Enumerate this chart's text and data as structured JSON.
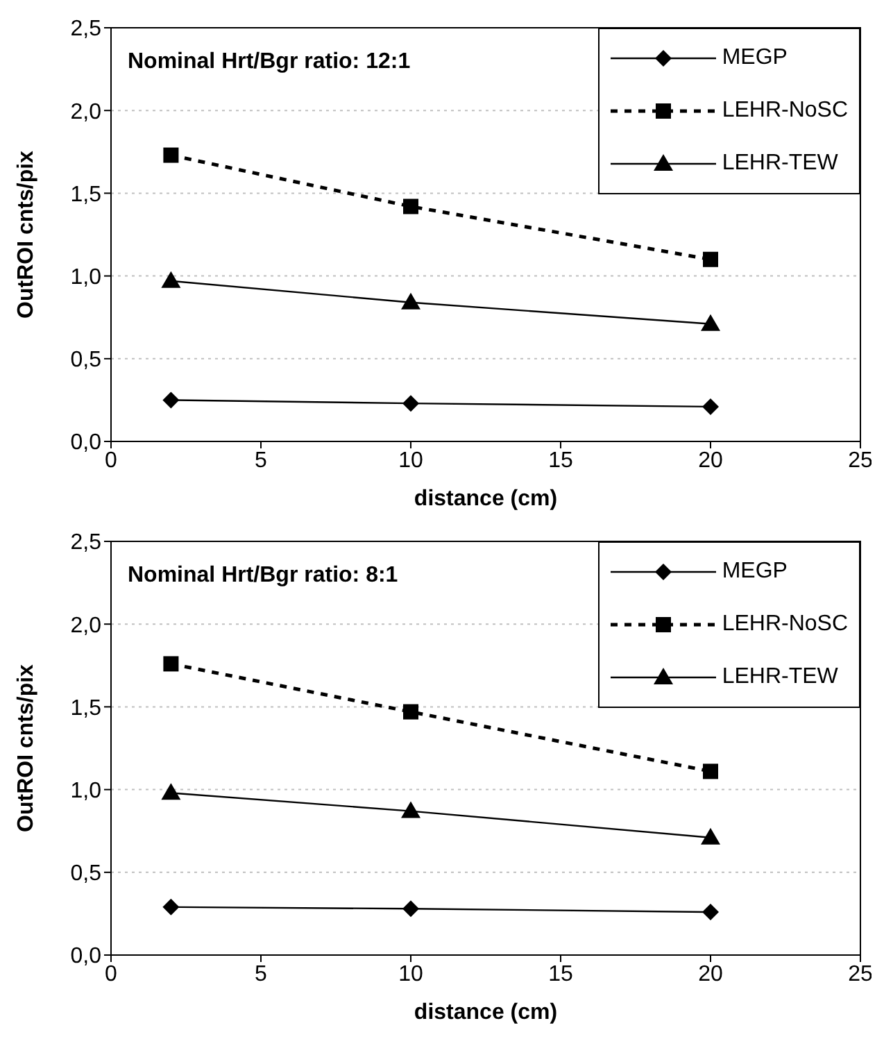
{
  "chart_data": [
    {
      "type": "line",
      "title": "Nominal Hrt/Bgr ratio: 12:1",
      "xlabel": "distance (cm)",
      "ylabel": "OutROI cnts/pix",
      "x": [
        2,
        10,
        20
      ],
      "xlim": [
        0,
        25
      ],
      "xticks": [
        0,
        5,
        10,
        15,
        20,
        25
      ],
      "ylim": [
        0,
        2.5
      ],
      "yticks": [
        {
          "value": 0,
          "label": "0,0"
        },
        {
          "value": 0.5,
          "label": "0,5"
        },
        {
          "value": 1,
          "label": "1,0"
        },
        {
          "value": 1.5,
          "label": "1,5"
        },
        {
          "value": 2,
          "label": "2,0"
        },
        {
          "value": 2.5,
          "label": "2,5"
        }
      ],
      "grid": "y",
      "legend": "top right",
      "series": [
        {
          "name": "MEGP",
          "color": "#000000",
          "marker": "diamond",
          "line_style": "solid",
          "values": [
            0.25,
            0.23,
            0.21
          ]
        },
        {
          "name": "LEHR-NoSC",
          "color": "#000000",
          "marker": "square",
          "line_style": "dashed",
          "values": [
            1.73,
            1.42,
            1.1
          ]
        },
        {
          "name": "LEHR-TEW",
          "color": "#000000",
          "marker": "triangle",
          "line_style": "solid",
          "values": [
            0.97,
            0.84,
            0.71
          ]
        }
      ]
    },
    {
      "type": "line",
      "title": "Nominal Hrt/Bgr ratio: 8:1",
      "xlabel": "distance (cm)",
      "ylabel": "OutROI cnts/pix",
      "x": [
        2,
        10,
        20
      ],
      "xlim": [
        0,
        25
      ],
      "xticks": [
        0,
        5,
        10,
        15,
        20,
        25
      ],
      "ylim": [
        0,
        2.5
      ],
      "yticks": [
        {
          "value": 0,
          "label": "0,0"
        },
        {
          "value": 0.5,
          "label": "0,5"
        },
        {
          "value": 1,
          "label": "1,0"
        },
        {
          "value": 1.5,
          "label": "1,5"
        },
        {
          "value": 2,
          "label": "2,0"
        },
        {
          "value": 2.5,
          "label": "2,5"
        }
      ],
      "grid": "y",
      "legend": "top right",
      "series": [
        {
          "name": "MEGP",
          "color": "#000000",
          "marker": "diamond",
          "line_style": "solid",
          "values": [
            0.29,
            0.28,
            0.26
          ]
        },
        {
          "name": "LEHR-NoSC",
          "color": "#000000",
          "marker": "square",
          "line_style": "dashed",
          "values": [
            1.76,
            1.47,
            1.11
          ]
        },
        {
          "name": "LEHR-TEW",
          "color": "#000000",
          "marker": "triangle",
          "line_style": "solid",
          "values": [
            0.98,
            0.87,
            0.71
          ]
        }
      ]
    }
  ]
}
